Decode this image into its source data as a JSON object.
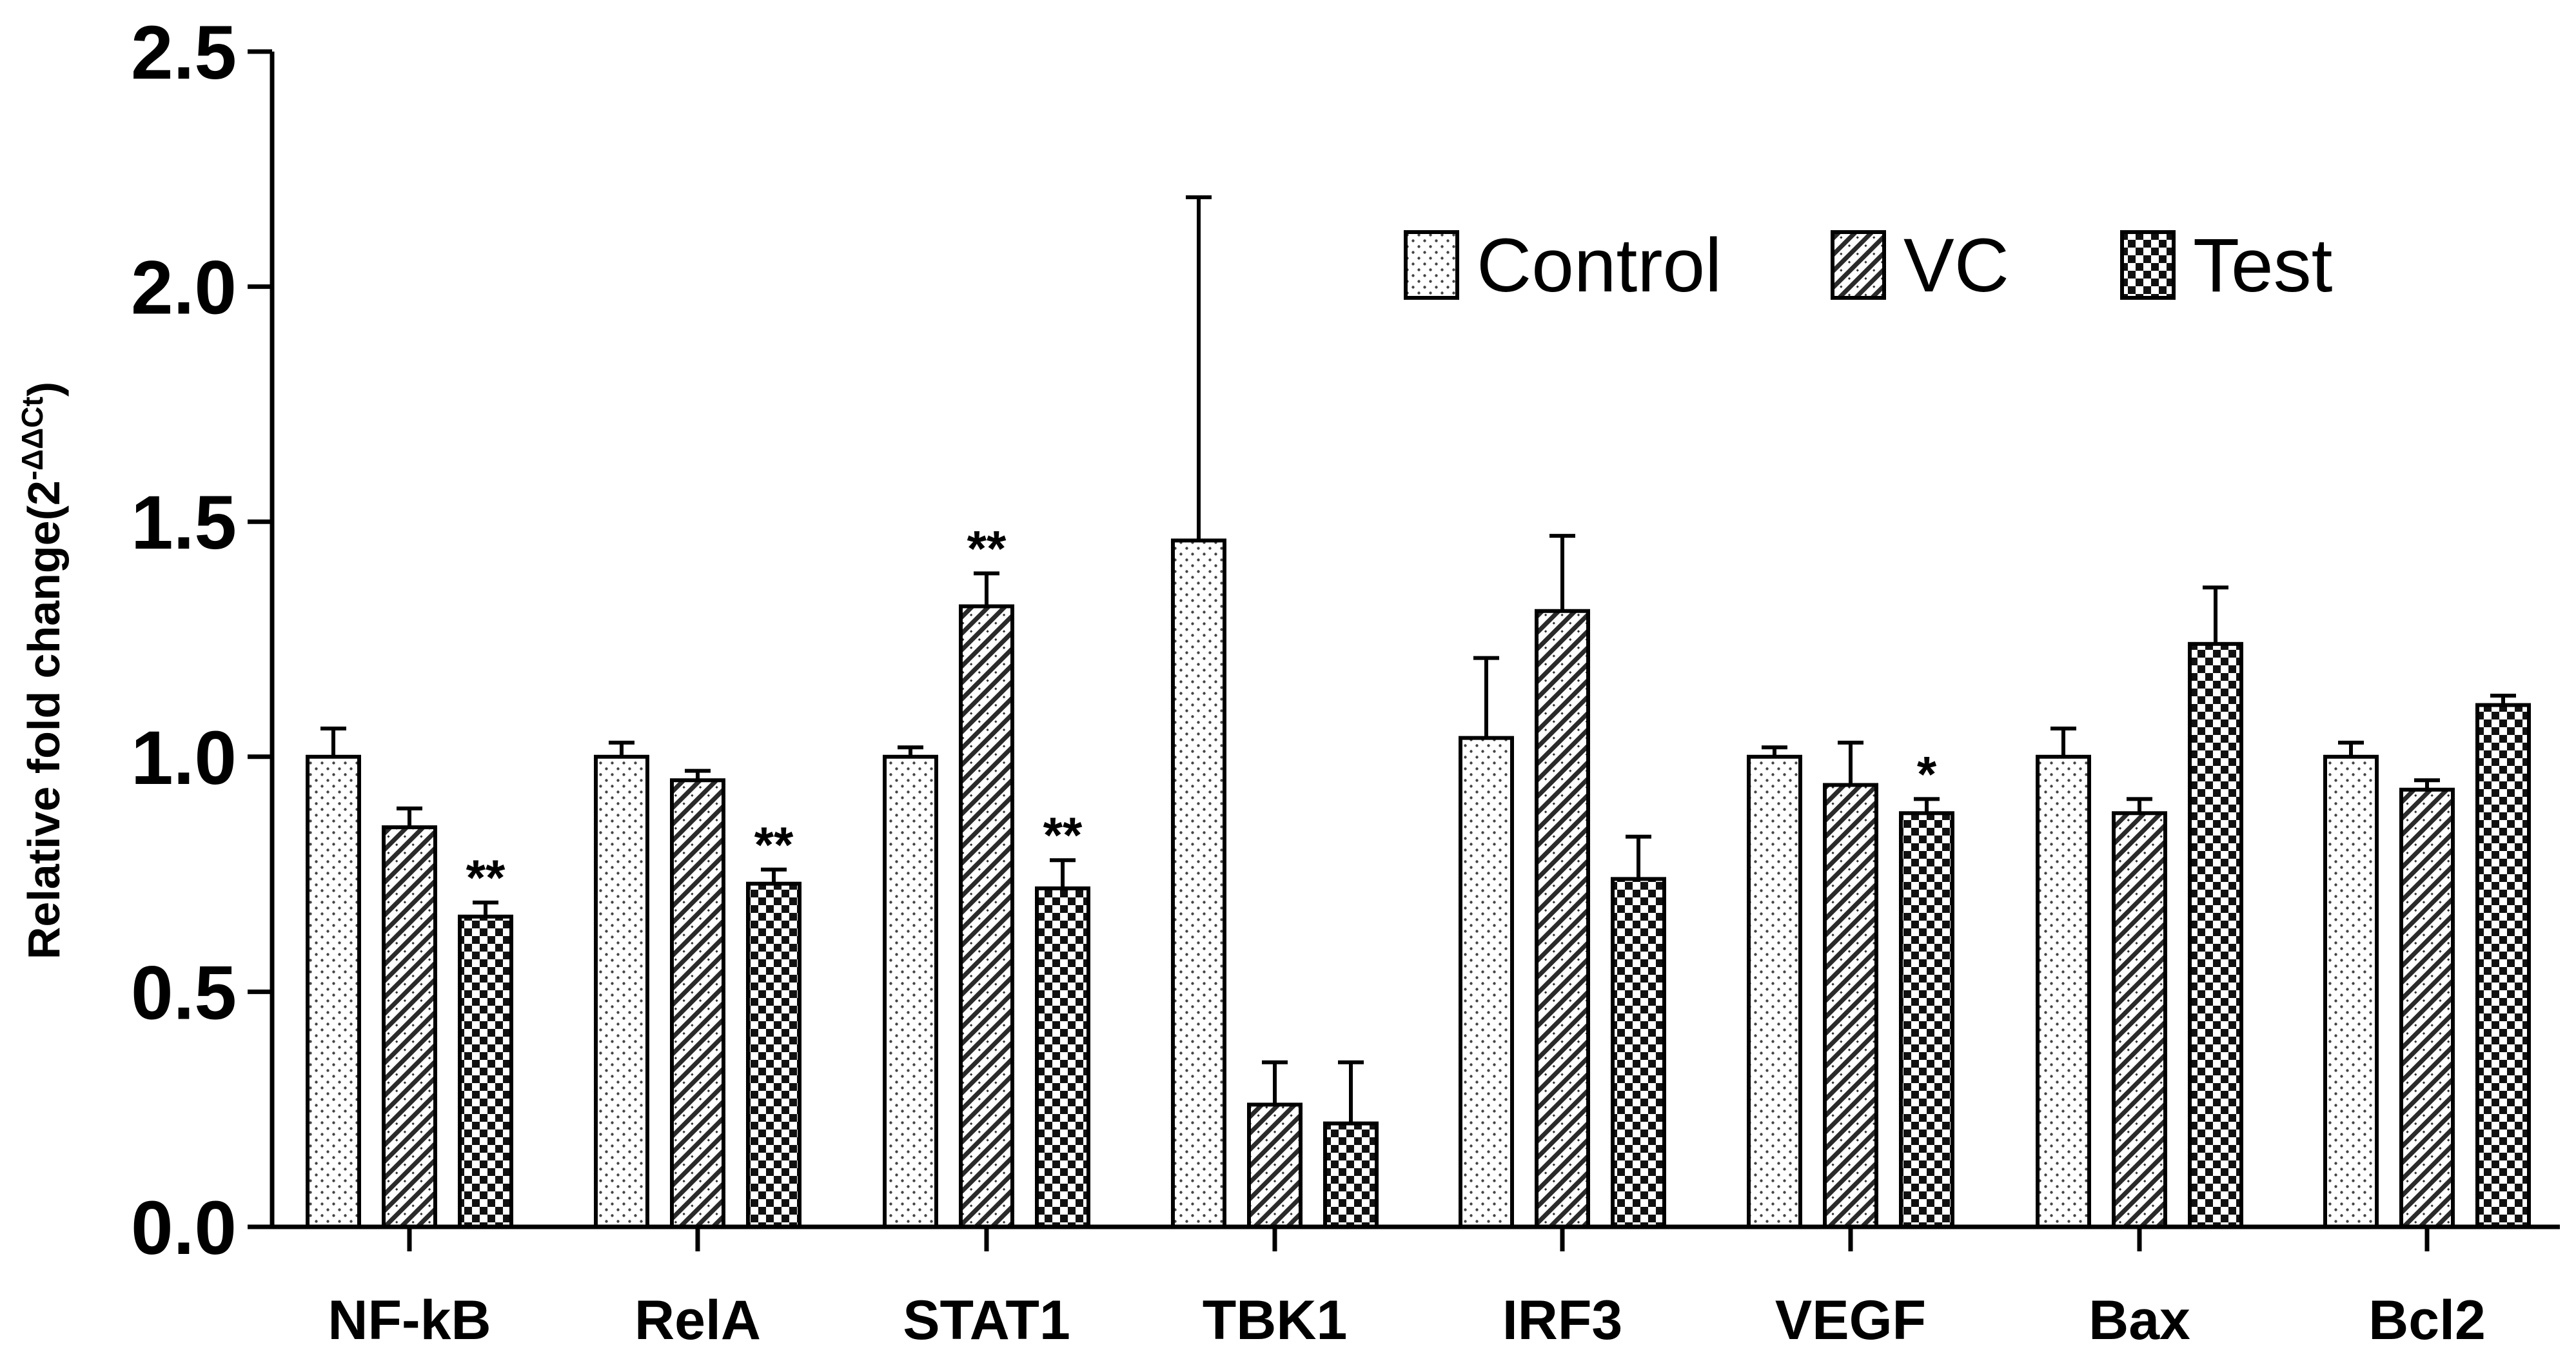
{
  "chart_data": {
    "type": "bar",
    "ylabel": "Relative fold change(2",
    "ylabel_superscript": "-ΔΔCt",
    "ylabel_close": ")",
    "ylim": [
      0,
      2.5
    ],
    "yticks": [
      "0.0",
      "0.5",
      "1.0",
      "1.5",
      "2.0",
      "2.5"
    ],
    "categories": [
      "NF-kB",
      "RelA",
      "STAT1",
      "TBK1",
      "IRF3",
      "VEGF",
      "Bax",
      "Bcl2"
    ],
    "series": [
      {
        "name": "Control",
        "pattern": "dots",
        "values": [
          1.0,
          1.0,
          1.0,
          1.46,
          1.04,
          1.0,
          1.0,
          1.0
        ],
        "errors": [
          0.06,
          0.03,
          0.02,
          0.73,
          0.17,
          0.02,
          0.06,
          0.03
        ]
      },
      {
        "name": "VC",
        "pattern": "hatch",
        "values": [
          0.85,
          0.95,
          1.32,
          0.26,
          1.31,
          0.94,
          0.88,
          0.93
        ],
        "errors": [
          0.04,
          0.02,
          0.07,
          0.09,
          0.16,
          0.09,
          0.03,
          0.02
        ]
      },
      {
        "name": "Test",
        "pattern": "checker",
        "values": [
          0.66,
          0.73,
          0.72,
          0.22,
          0.74,
          0.88,
          1.24,
          1.11
        ],
        "errors": [
          0.03,
          0.03,
          0.06,
          0.13,
          0.09,
          0.03,
          0.12,
          0.02
        ]
      }
    ],
    "significance": [
      {
        "category": "NF-kB",
        "series": "Test",
        "label": "**"
      },
      {
        "category": "RelA",
        "series": "Test",
        "label": "**"
      },
      {
        "category": "STAT1",
        "series": "VC",
        "label": "**"
      },
      {
        "category": "STAT1",
        "series": "Test",
        "label": "**"
      },
      {
        "category": "VEGF",
        "series": "Test",
        "label": "*"
      }
    ],
    "legend_position": "top-right",
    "grid": false
  }
}
